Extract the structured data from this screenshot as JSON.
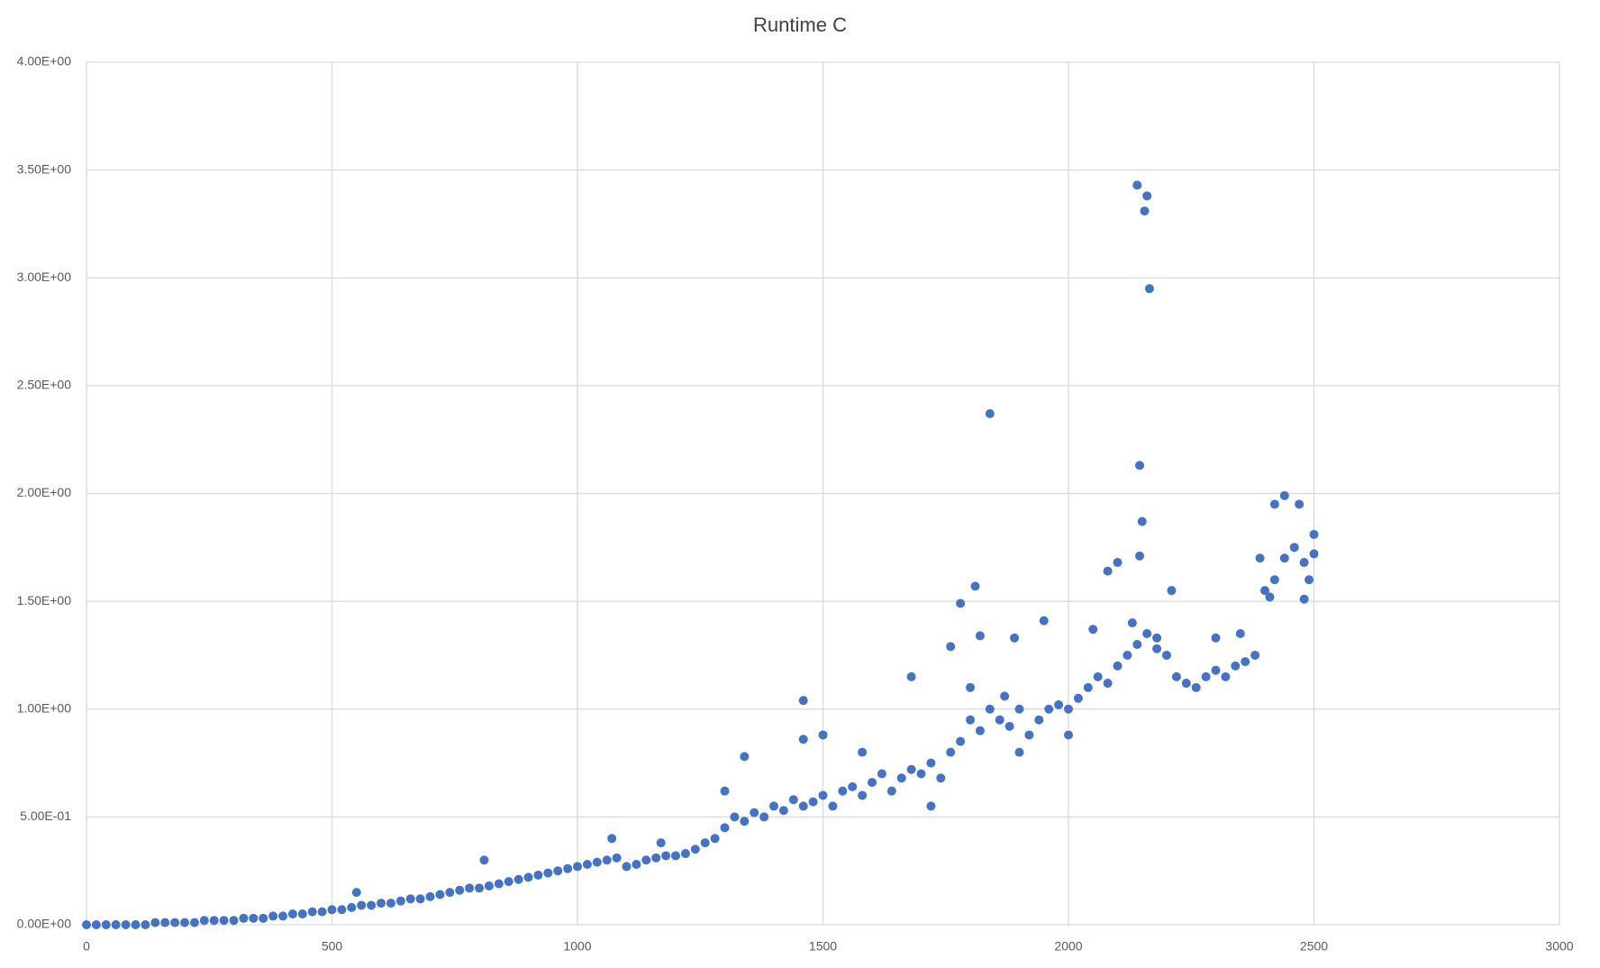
{
  "chart_data": {
    "type": "scatter",
    "title": "Runtime C",
    "color": "#4472c4",
    "grid": true,
    "xlim": [
      0,
      3000
    ],
    "xticks": [
      0,
      500,
      1000,
      1500,
      2000,
      2500,
      3000
    ],
    "ylim": [
      0,
      4
    ],
    "yticks": [
      {
        "value": 0,
        "label": "0.00E+00"
      },
      {
        "value": 0.5,
        "label": "5.00E-01"
      },
      {
        "value": 1,
        "label": "1.00E+00"
      },
      {
        "value": 1.5,
        "label": "1.50E+00"
      },
      {
        "value": 2,
        "label": "2.00E+00"
      },
      {
        "value": 2.5,
        "label": "2.50E+00"
      },
      {
        "value": 3,
        "label": "3.00E+00"
      },
      {
        "value": 3.5,
        "label": "3.50E+00"
      },
      {
        "value": 4,
        "label": "4.00E+00"
      }
    ],
    "x": [
      0,
      20,
      40,
      60,
      80,
      100,
      120,
      140,
      160,
      180,
      200,
      220,
      240,
      260,
      280,
      300,
      320,
      340,
      360,
      380,
      400,
      420,
      440,
      460,
      480,
      500,
      520,
      540,
      560,
      580,
      600,
      620,
      640,
      660,
      680,
      700,
      720,
      740,
      760,
      780,
      800,
      820,
      840,
      860,
      880,
      900,
      920,
      940,
      960,
      980,
      1000,
      1020,
      1040,
      1060,
      1080,
      1100,
      1120,
      1140,
      1160,
      1180,
      1200,
      1220,
      1240,
      1260,
      1280,
      1300,
      1320,
      1340,
      1360,
      1380,
      1400,
      1420,
      1440,
      1460,
      1480,
      1500,
      1520,
      1540,
      1560,
      1580,
      1600,
      1620,
      1640,
      1660,
      1680,
      1700,
      1720,
      1740,
      1760,
      1780,
      1800,
      1820,
      1840,
      1860,
      1880,
      1900,
      1920,
      1940,
      1960,
      1980,
      2000,
      2020,
      2040,
      2060,
      2080,
      2100,
      2120,
      2140,
      2160,
      2180,
      2200,
      2220,
      2240,
      2260,
      2280,
      2300,
      2320,
      2340,
      2360,
      2380,
      2400,
      2420,
      2440,
      2460,
      2480,
      2500,
      1300,
      1340,
      1460,
      1460,
      1500,
      1580,
      1680,
      1760,
      1780,
      1810,
      1820,
      1840,
      1870,
      1890,
      1950,
      2000,
      2080,
      2100,
      2140,
      2155,
      2160,
      2165,
      2145,
      2150,
      2145,
      2180,
      2210,
      2300,
      2350,
      2390,
      2420,
      2440,
      2470,
      2480,
      2500,
      2410,
      2490,
      810,
      1070,
      550,
      1170,
      1720,
      1800,
      1900,
      2050,
      2130
    ],
    "values": [
      0,
      0,
      0,
      0,
      0,
      0,
      0,
      0.01,
      0.01,
      0.01,
      0.01,
      0.01,
      0.02,
      0.02,
      0.02,
      0.02,
      0.03,
      0.03,
      0.03,
      0.04,
      0.04,
      0.05,
      0.05,
      0.06,
      0.06,
      0.07,
      0.07,
      0.08,
      0.09,
      0.09,
      0.1,
      0.1,
      0.11,
      0.12,
      0.12,
      0.13,
      0.14,
      0.15,
      0.16,
      0.17,
      0.17,
      0.18,
      0.19,
      0.2,
      0.21,
      0.22,
      0.23,
      0.24,
      0.25,
      0.26,
      0.27,
      0.28,
      0.29,
      0.3,
      0.31,
      0.27,
      0.28,
      0.3,
      0.31,
      0.32,
      0.32,
      0.33,
      0.35,
      0.38,
      0.4,
      0.45,
      0.5,
      0.48,
      0.52,
      0.5,
      0.55,
      0.53,
      0.58,
      0.55,
      0.57,
      0.6,
      0.55,
      0.62,
      0.64,
      0.6,
      0.66,
      0.7,
      0.62,
      0.68,
      0.72,
      0.7,
      0.75,
      0.68,
      0.8,
      0.85,
      0.95,
      0.9,
      1,
      0.95,
      0.92,
      1,
      0.88,
      0.95,
      1,
      1.02,
      1,
      1.05,
      1.1,
      1.15,
      1.12,
      1.2,
      1.25,
      1.3,
      1.35,
      1.28,
      1.25,
      1.15,
      1.12,
      1.1,
      1.15,
      1.18,
      1.15,
      1.2,
      1.22,
      1.25,
      1.55,
      1.6,
      1.7,
      1.75,
      1.68,
      1.72,
      0.62,
      0.78,
      1.04,
      0.86,
      0.88,
      0.8,
      1.15,
      1.29,
      1.49,
      1.57,
      1.34,
      2.37,
      1.06,
      1.33,
      1.41,
      0.88,
      1.64,
      1.68,
      3.43,
      3.31,
      3.38,
      2.95,
      2.13,
      1.87,
      1.71,
      1.33,
      1.55,
      1.33,
      1.35,
      1.7,
      1.95,
      1.99,
      1.95,
      1.51,
      1.81,
      1.52,
      1.6,
      0.3,
      0.4,
      0.15,
      0.38,
      0.55,
      1.1,
      0.8,
      1.37,
      1.4
    ]
  }
}
